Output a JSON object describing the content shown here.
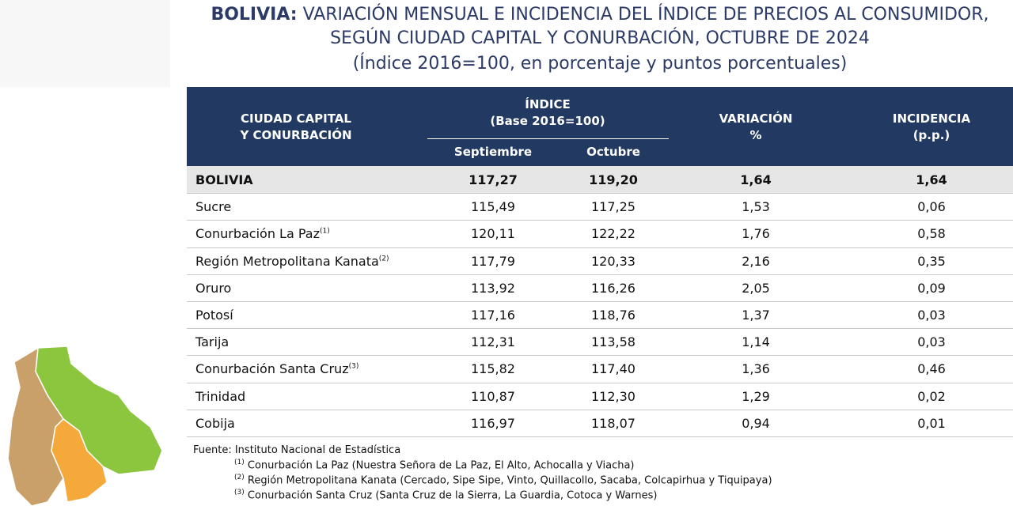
{
  "title": {
    "lead": "BOLIVIA:",
    "line1": "VARIACIÓN MENSUAL E INCIDENCIA DEL ÍNDICE DE PRECIOS AL CONSUMIDOR,",
    "line2": "SEGÚN CIUDAD CAPITAL Y CONURBACIÓN, OCTUBRE DE 2024",
    "line3": "(Índice 2016=100, en porcentaje y puntos porcentuales)"
  },
  "table": {
    "header": {
      "city": [
        "CIUDAD CAPITAL",
        "Y CONURBACIÓN"
      ],
      "index": [
        "ÍNDICE",
        "(Base 2016=100)"
      ],
      "months": [
        "Septiembre",
        "Octubre"
      ],
      "variation": [
        "VARIACIÓN",
        "%"
      ],
      "incidence": [
        "INCIDENCIA",
        "(p.p.)"
      ]
    },
    "rows": [
      {
        "name": "BOLIVIA",
        "cells": [
          "117,27",
          "119,20",
          "1,64",
          "1,64"
        ]
      },
      {
        "name": "Sucre",
        "cells": [
          "115,49",
          "117,25",
          "1,53",
          "0,06"
        ]
      },
      {
        "name": "Conurbación La Paz",
        "note": "(1)",
        "cells": [
          "120,11",
          "122,22",
          "1,76",
          "0,58"
        ]
      },
      {
        "name": "Región Metropolitana Kanata",
        "note": "(2)",
        "cells": [
          "117,79",
          "120,33",
          "2,16",
          "0,35"
        ]
      },
      {
        "name": "Oruro",
        "cells": [
          "113,92",
          "116,26",
          "2,05",
          "0,09"
        ]
      },
      {
        "name": "Potosí",
        "cells": [
          "117,16",
          "118,76",
          "1,37",
          "0,03"
        ]
      },
      {
        "name": "Tarija",
        "cells": [
          "112,31",
          "113,58",
          "1,14",
          "0,03"
        ]
      },
      {
        "name": "Conurbación Santa Cruz",
        "note": "(3)",
        "cells": [
          "115,82",
          "117,40",
          "1,36",
          "0,46"
        ]
      },
      {
        "name": "Trinidad",
        "cells": [
          "110,87",
          "112,30",
          "1,29",
          "0,02"
        ]
      },
      {
        "name": "Cobija",
        "cells": [
          "116,97",
          "118,07",
          "0,94",
          "0,01"
        ]
      }
    ]
  },
  "footer": {
    "source": "Fuente: Instituto Nacional de Estadística",
    "notes": [
      {
        "mark": "(1)",
        "text": "Conurbación La Paz (Nuestra Señora de La Paz, El Alto, Achocalla y Viacha)"
      },
      {
        "mark": "(2)",
        "text": "Región Metropolitana Kanata (Cercado, Sipe Sipe, Vinto, Quillacollo, Sacaba, Colcapirhua y Tiquipaya)"
      },
      {
        "mark": "(3)",
        "text": "Conurbación Santa Cruz (Santa Cruz de la Sierra, La Guardia, Cotoca y Warnes)"
      }
    ]
  }
}
